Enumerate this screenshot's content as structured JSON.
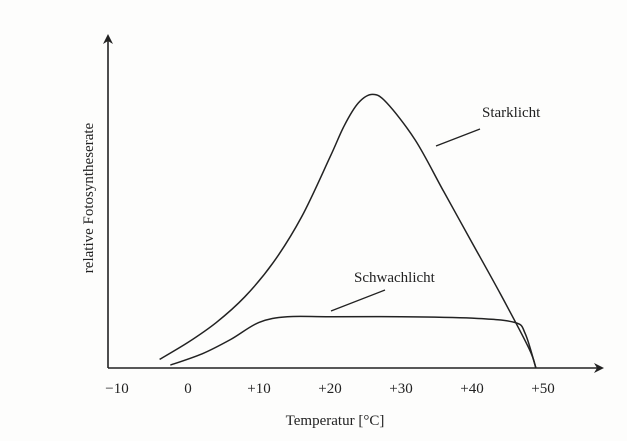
{
  "chart_data": {
    "type": "line",
    "title": "",
    "xlabel": "Temperatur [°C]",
    "ylabel": "relative Fotosyntheserate",
    "xlim": [
      -13,
      61
    ],
    "ylim": [
      0,
      110
    ],
    "x_ticks": [
      -10,
      0,
      10,
      20,
      30,
      40,
      50
    ],
    "x_tick_labels": [
      "−10",
      "0",
      "+10",
      "+20",
      "+30",
      "+40",
      "+50"
    ],
    "y_ticks": [],
    "grid": false,
    "legend": "none (series labelled directly on curves)",
    "series": [
      {
        "name": "Starklicht",
        "x": [
          -4,
          0,
          4,
          8,
          12,
          16,
          20,
          22,
          24,
          26,
          28,
          32,
          36,
          40,
          44,
          48,
          49
        ],
        "y": [
          3,
          9,
          16,
          25,
          37,
          53,
          74,
          85,
          93,
          96,
          93,
          80,
          62,
          44,
          26,
          7,
          0
        ]
      },
      {
        "name": "Schwachlicht",
        "x": [
          -2.5,
          2,
          6,
          10,
          14,
          20,
          30,
          40,
          46,
          47.5,
          49
        ],
        "y": [
          1,
          5,
          10,
          16,
          18,
          18,
          18,
          17.5,
          16,
          12,
          0
        ]
      }
    ]
  },
  "colors": {
    "ink": "#222222",
    "paper": "#fdfdfc"
  }
}
